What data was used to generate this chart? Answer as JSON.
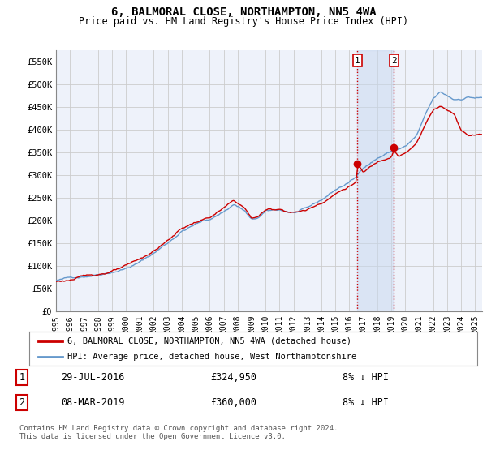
{
  "title": "6, BALMORAL CLOSE, NORTHAMPTON, NN5 4WA",
  "subtitle": "Price paid vs. HM Land Registry's House Price Index (HPI)",
  "title_fontsize": 10,
  "subtitle_fontsize": 8.5,
  "ylabel_ticks": [
    "£0",
    "£50K",
    "£100K",
    "£150K",
    "£200K",
    "£250K",
    "£300K",
    "£350K",
    "£400K",
    "£450K",
    "£500K",
    "£550K"
  ],
  "ytick_values": [
    0,
    50000,
    100000,
    150000,
    200000,
    250000,
    300000,
    350000,
    400000,
    450000,
    500000,
    550000
  ],
  "ylim": [
    0,
    575000
  ],
  "xlim_start": 1995.25,
  "xlim_end": 2025.5,
  "xtick_years": [
    1995,
    1996,
    1997,
    1998,
    1999,
    2000,
    2001,
    2002,
    2003,
    2004,
    2005,
    2006,
    2007,
    2008,
    2009,
    2010,
    2011,
    2012,
    2013,
    2014,
    2015,
    2016,
    2017,
    2018,
    2019,
    2020,
    2021,
    2022,
    2023,
    2024,
    2025
  ],
  "hpi_color": "#6699cc",
  "price_color": "#cc0000",
  "vline_color": "#cc0000",
  "vline_style": ":",
  "shade_color": "#c8d8f0",
  "grid_color": "#cccccc",
  "bg_color": "#ffffff",
  "plot_bg_color": "#eef2fa",
  "legend_box_color": "#ffffff",
  "legend_border_color": "#888888",
  "marker1_x": 2016.58,
  "marker1_y": 324950,
  "marker2_x": 2019.18,
  "marker2_y": 360000,
  "annotation_box1": {
    "num": "1",
    "date": "29-JUL-2016",
    "price": "£324,950",
    "pct": "8% ↓ HPI"
  },
  "annotation_box2": {
    "num": "2",
    "date": "08-MAR-2019",
    "price": "£360,000",
    "pct": "8% ↓ HPI"
  },
  "legend_line1": "6, BALMORAL CLOSE, NORTHAMPTON, NN5 4WA (detached house)",
  "legend_line2": "HPI: Average price, detached house, West Northamptonshire",
  "footer": "Contains HM Land Registry data © Crown copyright and database right 2024.\nThis data is licensed under the Open Government Licence v3.0."
}
